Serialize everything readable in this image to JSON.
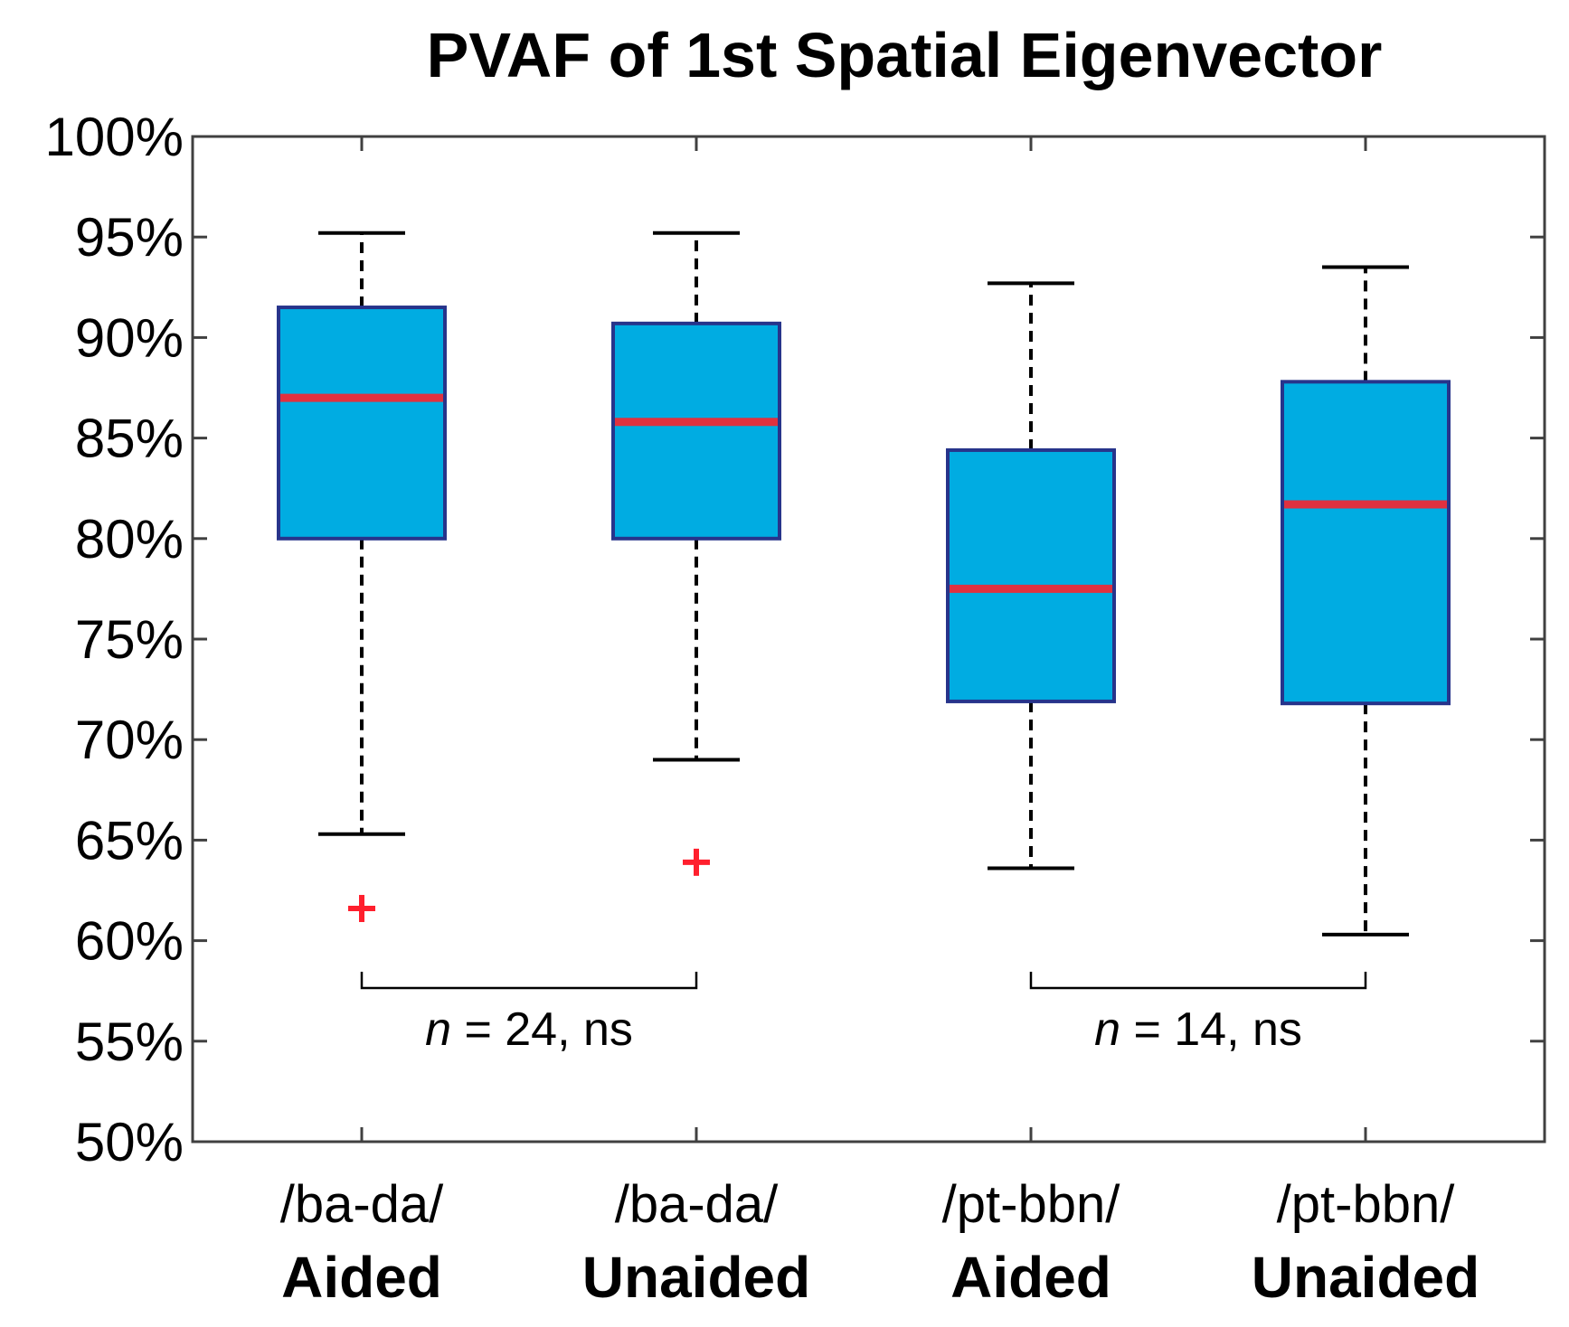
{
  "chart_data": {
    "type": "box",
    "title": "PVAF of 1st Spatial Eigenvector",
    "xlabel": "",
    "ylabel": "",
    "ylim": [
      50,
      100
    ],
    "y_ticks": [
      50,
      55,
      60,
      65,
      70,
      75,
      80,
      85,
      90,
      95,
      100
    ],
    "y_tick_labels": [
      "50%",
      "55%",
      "60%",
      "65%",
      "70%",
      "75%",
      "80%",
      "85%",
      "90%",
      "95%",
      "100%"
    ],
    "grid": false,
    "categories": [
      {
        "line1": "/ba-da/",
        "line2": "Aided"
      },
      {
        "line1": "/ba-da/",
        "line2": "Unaided"
      },
      {
        "line1": "/pt-bbn/",
        "line2": "Aided"
      },
      {
        "line1": "/pt-bbn/",
        "line2": "Unaided"
      }
    ],
    "boxes": [
      {
        "whisker_low": 65.3,
        "q1": 80.0,
        "median": 87.0,
        "q3": 91.5,
        "whisker_high": 95.2,
        "outliers": [
          61.6
        ]
      },
      {
        "whisker_low": 69.0,
        "q1": 80.0,
        "median": 85.8,
        "q3": 90.7,
        "whisker_high": 95.2,
        "outliers": [
          63.9
        ]
      },
      {
        "whisker_low": 63.6,
        "q1": 71.9,
        "median": 77.5,
        "q3": 84.4,
        "whisker_high": 92.7,
        "outliers": []
      },
      {
        "whisker_low": 60.3,
        "q1": 71.8,
        "median": 81.7,
        "q3": 87.8,
        "whisker_high": 93.5,
        "outliers": []
      }
    ],
    "annotations": [
      {
        "from": 0,
        "to": 1,
        "n_label": "n",
        "rest": " = 24, ns"
      },
      {
        "from": 2,
        "to": 3,
        "n_label": "n",
        "rest": " = 14, ns"
      }
    ],
    "colors": {
      "box_fill": "#00ACE2",
      "box_edge": "#27348B",
      "median": "#E0313F",
      "outlier": "#FF1F2D",
      "whisker": "#000000",
      "axis": "#404040"
    }
  }
}
